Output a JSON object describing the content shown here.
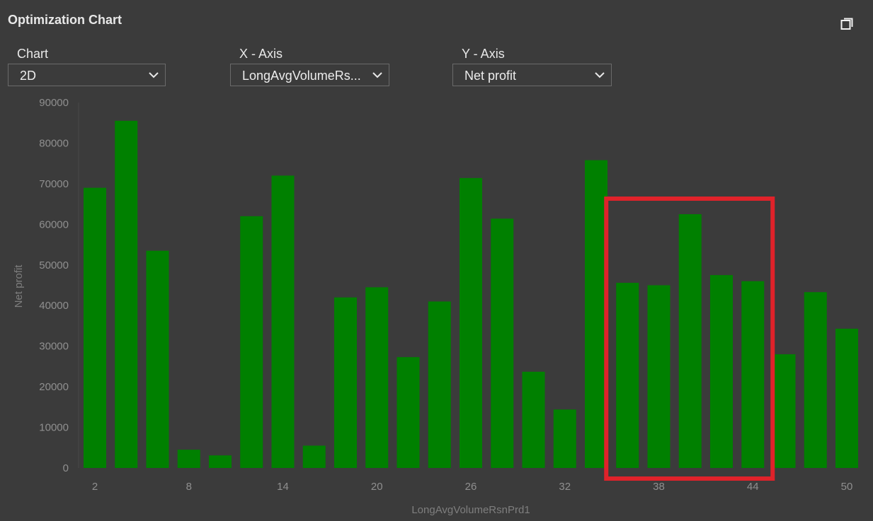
{
  "title": "Optimization Chart",
  "icons": {
    "popout": "window-restore-icon"
  },
  "controls": {
    "chart": {
      "label": "Chart",
      "value": "2D"
    },
    "x_axis": {
      "label": "X - Axis",
      "value": "LongAvgVolumeRs..."
    },
    "y_axis": {
      "label": "Y - Axis",
      "value": "Net profit"
    }
  },
  "colors": {
    "bar": "#008000",
    "highlight": "#e0222a",
    "background": "#3b3b3b"
  },
  "chart_data": {
    "type": "bar",
    "xlabel": "LongAvgVolumeRsnPrd1",
    "ylabel": "Net profit",
    "ylim": [
      0,
      90000
    ],
    "yticks": [
      0,
      10000,
      20000,
      30000,
      40000,
      50000,
      60000,
      70000,
      80000,
      90000
    ],
    "xticks": [
      2,
      8,
      14,
      20,
      26,
      32,
      38,
      44,
      50
    ],
    "categories": [
      2,
      4,
      6,
      8,
      10,
      12,
      14,
      16,
      18,
      20,
      22,
      24,
      26,
      28,
      30,
      32,
      34,
      36,
      38,
      40,
      42,
      44,
      46,
      48,
      50
    ],
    "values": [
      69000,
      85500,
      53500,
      4500,
      3100,
      62000,
      72000,
      5500,
      42000,
      44500,
      27300,
      41000,
      71400,
      61400,
      23700,
      14400,
      75800,
      45600,
      45000,
      62500,
      47500,
      46000,
      28000,
      43300,
      34300
    ],
    "highlight_range": [
      36,
      44
    ],
    "grid": false
  }
}
